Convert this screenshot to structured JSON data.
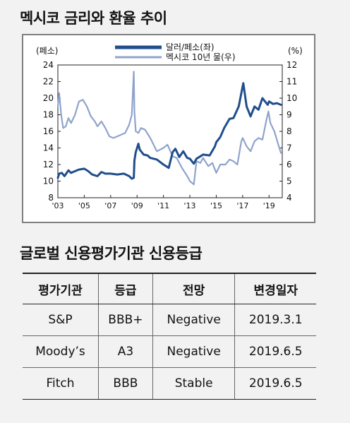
{
  "chart_title": "멕시코 금리와 환율 추이",
  "table_title": "글로벌 신용평가기관 신용등급",
  "chart_data": {
    "type": "line",
    "left_axis_unit": "(페소)",
    "right_axis_unit": "(%)",
    "left_ylim": [
      8,
      24
    ],
    "left_ticks": [
      "8",
      "10",
      "12",
      "14",
      "16",
      "18",
      "20",
      "22",
      "24"
    ],
    "right_ylim": [
      4,
      12
    ],
    "right_ticks": [
      "4",
      "5",
      "6",
      "7",
      "8",
      "9",
      "10",
      "11",
      "12"
    ],
    "xlim": [
      2003.0,
      2020.0
    ],
    "x_tick_labels": [
      "'03",
      "'05",
      "'07",
      "'09",
      "'11",
      "'13",
      "'15",
      "'17",
      "'19"
    ],
    "series": [
      {
        "name": "달러/페소(좌)",
        "axis": "left",
        "color": "#1f4e8c",
        "points": [
          [
            2003.0,
            10.4
          ],
          [
            2003.1,
            10.9
          ],
          [
            2003.3,
            11.0
          ],
          [
            2003.5,
            10.6
          ],
          [
            2003.8,
            11.3
          ],
          [
            2004.0,
            11.0
          ],
          [
            2004.3,
            11.2
          ],
          [
            2004.6,
            11.4
          ],
          [
            2005.0,
            11.5
          ],
          [
            2005.3,
            11.2
          ],
          [
            2005.6,
            10.8
          ],
          [
            2006.0,
            10.6
          ],
          [
            2006.3,
            11.1
          ],
          [
            2006.6,
            10.9
          ],
          [
            2007.0,
            10.9
          ],
          [
            2007.5,
            10.8
          ],
          [
            2008.0,
            10.9
          ],
          [
            2008.4,
            10.6
          ],
          [
            2008.6,
            10.3
          ],
          [
            2008.75,
            10.4
          ],
          [
            2008.8,
            12.5
          ],
          [
            2008.9,
            13.5
          ],
          [
            2009.1,
            14.5
          ],
          [
            2009.2,
            13.8
          ],
          [
            2009.5,
            13.2
          ],
          [
            2009.8,
            13.1
          ],
          [
            2010.0,
            12.8
          ],
          [
            2010.5,
            12.6
          ],
          [
            2011.0,
            12.0
          ],
          [
            2011.4,
            11.6
          ],
          [
            2011.7,
            13.5
          ],
          [
            2011.9,
            13.9
          ],
          [
            2012.2,
            12.9
          ],
          [
            2012.5,
            13.6
          ],
          [
            2012.8,
            12.8
          ],
          [
            2013.0,
            12.7
          ],
          [
            2013.3,
            12.1
          ],
          [
            2013.5,
            12.7
          ],
          [
            2013.8,
            13.0
          ],
          [
            2014.0,
            13.2
          ],
          [
            2014.5,
            13.1
          ],
          [
            2014.9,
            14.2
          ],
          [
            2015.0,
            14.7
          ],
          [
            2015.3,
            15.3
          ],
          [
            2015.6,
            16.4
          ],
          [
            2016.0,
            17.5
          ],
          [
            2016.3,
            17.6
          ],
          [
            2016.7,
            19.0
          ],
          [
            2016.9,
            20.6
          ],
          [
            2017.05,
            21.8
          ],
          [
            2017.3,
            19.0
          ],
          [
            2017.6,
            17.8
          ],
          [
            2017.9,
            19.0
          ],
          [
            2018.2,
            18.6
          ],
          [
            2018.5,
            20.0
          ],
          [
            2018.9,
            19.2
          ],
          [
            2019.0,
            19.6
          ],
          [
            2019.3,
            19.3
          ],
          [
            2019.6,
            19.4
          ],
          [
            2019.9,
            19.2
          ]
        ]
      },
      {
        "name": "멕시코 10년 물(우)",
        "axis": "right",
        "color": "#8fa3cc",
        "points": [
          [
            2003.0,
            9.5
          ],
          [
            2003.1,
            10.3
          ],
          [
            2003.25,
            9.0
          ],
          [
            2003.4,
            8.2
          ],
          [
            2003.6,
            8.3
          ],
          [
            2003.8,
            8.8
          ],
          [
            2004.0,
            8.5
          ],
          [
            2004.3,
            9.0
          ],
          [
            2004.6,
            9.8
          ],
          [
            2004.9,
            9.9
          ],
          [
            2005.2,
            9.5
          ],
          [
            2005.5,
            8.9
          ],
          [
            2005.8,
            8.6
          ],
          [
            2006.0,
            8.3
          ],
          [
            2006.3,
            8.6
          ],
          [
            2006.6,
            8.2
          ],
          [
            2006.9,
            7.7
          ],
          [
            2007.2,
            7.6
          ],
          [
            2007.5,
            7.7
          ],
          [
            2007.8,
            7.8
          ],
          [
            2008.1,
            7.9
          ],
          [
            2008.4,
            8.4
          ],
          [
            2008.6,
            9.0
          ],
          [
            2008.75,
            11.6
          ],
          [
            2008.8,
            9.2
          ],
          [
            2008.9,
            8.0
          ],
          [
            2009.1,
            7.9
          ],
          [
            2009.3,
            8.2
          ],
          [
            2009.6,
            8.1
          ],
          [
            2010.0,
            7.6
          ],
          [
            2010.5,
            6.8
          ],
          [
            2011.0,
            7.0
          ],
          [
            2011.3,
            7.2
          ],
          [
            2011.7,
            6.5
          ],
          [
            2012.0,
            6.4
          ],
          [
            2012.4,
            5.8
          ],
          [
            2012.8,
            5.3
          ],
          [
            2013.0,
            5.0
          ],
          [
            2013.3,
            4.8
          ],
          [
            2013.5,
            6.2
          ],
          [
            2013.8,
            6.1
          ],
          [
            2014.0,
            6.4
          ],
          [
            2014.4,
            5.9
          ],
          [
            2014.7,
            6.1
          ],
          [
            2015.0,
            5.5
          ],
          [
            2015.3,
            6.0
          ],
          [
            2015.7,
            6.0
          ],
          [
            2016.0,
            6.3
          ],
          [
            2016.3,
            6.2
          ],
          [
            2016.6,
            6.0
          ],
          [
            2016.9,
            7.4
          ],
          [
            2017.0,
            7.6
          ],
          [
            2017.3,
            7.1
          ],
          [
            2017.6,
            6.8
          ],
          [
            2017.9,
            7.4
          ],
          [
            2018.2,
            7.6
          ],
          [
            2018.5,
            7.5
          ],
          [
            2018.8,
            8.7
          ],
          [
            2018.95,
            9.2
          ],
          [
            2019.1,
            8.5
          ],
          [
            2019.4,
            8.0
          ],
          [
            2019.7,
            7.2
          ],
          [
            2019.9,
            6.7
          ]
        ]
      }
    ]
  },
  "table": {
    "headers": [
      "평가기관",
      "등급",
      "전망",
      "변경일자"
    ],
    "rows": [
      [
        "S&P",
        "BBB+",
        "Negative",
        "2019.3.1"
      ],
      [
        "Moody’s",
        "A3",
        "Negative",
        "2019.6.5"
      ],
      [
        "Fitch",
        "BBB",
        "Stable",
        "2019.6.5"
      ]
    ]
  }
}
